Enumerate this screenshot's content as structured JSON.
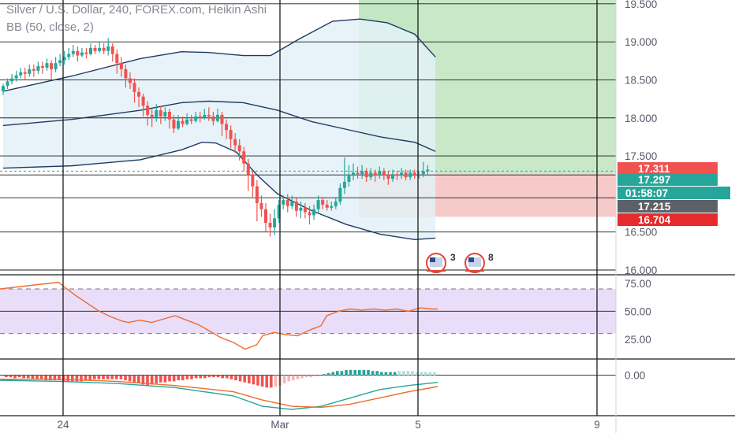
{
  "header": {
    "symbol_line": "Silver / U.S. Dollar, 240, FOREX.com, Heikin Ashi",
    "bb_line": "BB (50, close, 2)"
  },
  "colors": {
    "up": "#26a69a",
    "down": "#ef5350",
    "bb": "#1f3b63",
    "rsi": "#ef6c2c",
    "rsi_band": "#e9ddfa",
    "macd_line": "#26a69a",
    "signal_line": "#ef6c2c",
    "target_zone": "#c8e8c8",
    "stop_zone": "#f7caca"
  },
  "chart_data": [
    {
      "type": "candlestick",
      "title": "Silver / U.S. Dollar, 240, FOREX.com, Heikin Ashi",
      "y_ticks": [
        "19.500",
        "19.000",
        "18.500",
        "18.000",
        "17.500",
        "16.500",
        "16.000"
      ],
      "ylim": [
        16.0,
        19.55
      ],
      "x_ticks": [
        "24",
        "Mar",
        "5",
        "9"
      ],
      "price_tags": [
        {
          "value": "17.311",
          "color": "#ef5350"
        },
        {
          "value": "17.297",
          "color": "#26a69a"
        },
        {
          "value": "01:58:07",
          "color": "#26a69a"
        },
        {
          "value": "17.215",
          "color": "#5d6066"
        },
        {
          "value": "16.704",
          "color": "#e52b2b"
        }
      ],
      "position": {
        "entry": 17.26,
        "target": 19.55,
        "stop": 16.7
      },
      "bollinger": {
        "upper": [
          [
            0,
            18.35
          ],
          [
            20,
            18.55
          ],
          [
            40,
            18.78
          ],
          [
            52,
            18.87
          ],
          [
            60,
            18.86
          ],
          [
            70,
            18.82
          ],
          [
            78,
            18.82
          ],
          [
            86,
            19.03
          ],
          [
            96,
            19.27
          ],
          [
            104,
            19.3
          ],
          [
            112,
            19.25
          ],
          [
            120,
            19.1
          ],
          [
            126,
            18.8
          ]
        ],
        "middle": [
          [
            0,
            17.9
          ],
          [
            20,
            17.98
          ],
          [
            40,
            18.1
          ],
          [
            52,
            18.2
          ],
          [
            60,
            18.22
          ],
          [
            70,
            18.2
          ],
          [
            80,
            18.1
          ],
          [
            90,
            17.95
          ],
          [
            100,
            17.85
          ],
          [
            110,
            17.75
          ],
          [
            120,
            17.68
          ],
          [
            126,
            17.56
          ]
        ],
        "lower": [
          [
            0,
            17.34
          ],
          [
            20,
            17.37
          ],
          [
            40,
            17.45
          ],
          [
            52,
            17.58
          ],
          [
            58,
            17.68
          ],
          [
            62,
            17.67
          ],
          [
            68,
            17.55
          ],
          [
            74,
            17.25
          ],
          [
            80,
            17.0
          ],
          [
            90,
            16.78
          ],
          [
            100,
            16.6
          ],
          [
            110,
            16.47
          ],
          [
            120,
            16.4
          ],
          [
            126,
            16.42
          ]
        ]
      },
      "candles": [
        [
          18.35,
          18.42,
          18.3,
          18.45
        ],
        [
          18.42,
          18.48,
          18.38,
          18.52
        ],
        [
          18.48,
          18.52,
          18.44,
          18.58
        ],
        [
          18.52,
          18.56,
          18.48,
          18.62
        ],
        [
          18.56,
          18.6,
          18.52,
          18.66
        ],
        [
          18.6,
          18.58,
          18.5,
          18.66
        ],
        [
          18.58,
          18.64,
          18.54,
          18.7
        ],
        [
          18.64,
          18.62,
          18.54,
          18.7
        ],
        [
          18.62,
          18.68,
          18.58,
          18.74
        ],
        [
          18.68,
          18.66,
          18.58,
          18.74
        ],
        [
          18.66,
          18.72,
          18.62,
          18.78
        ],
        [
          18.72,
          18.64,
          18.5,
          18.76
        ],
        [
          18.64,
          18.72,
          18.6,
          18.8
        ],
        [
          18.72,
          18.76,
          18.68,
          18.84
        ],
        [
          18.76,
          18.8,
          18.7,
          18.88
        ],
        [
          18.8,
          18.84,
          18.76,
          18.92
        ],
        [
          18.84,
          18.88,
          18.8,
          18.96
        ],
        [
          18.88,
          18.82,
          18.74,
          18.94
        ],
        [
          18.82,
          18.86,
          18.8,
          18.92
        ],
        [
          18.86,
          18.84,
          18.78,
          18.92
        ],
        [
          18.84,
          18.92,
          18.82,
          18.98
        ],
        [
          18.92,
          18.88,
          18.84,
          18.96
        ],
        [
          18.88,
          18.92,
          18.86,
          19.0
        ],
        [
          18.92,
          18.88,
          18.84,
          18.98
        ],
        [
          18.88,
          18.94,
          18.82,
          19.05
        ],
        [
          18.94,
          18.84,
          18.74,
          18.98
        ],
        [
          18.84,
          18.72,
          18.58,
          18.9
        ],
        [
          18.72,
          18.64,
          18.54,
          18.8
        ],
        [
          18.64,
          18.52,
          18.4,
          18.7
        ],
        [
          18.52,
          18.46,
          18.38,
          18.6
        ],
        [
          18.46,
          18.34,
          18.2,
          18.52
        ],
        [
          18.34,
          18.28,
          18.14,
          18.4
        ],
        [
          18.28,
          18.16,
          18.02,
          18.32
        ],
        [
          18.16,
          18.04,
          17.9,
          18.22
        ],
        [
          18.04,
          18.0,
          17.88,
          18.12
        ],
        [
          18.0,
          18.1,
          17.95,
          18.18
        ],
        [
          18.1,
          18.02,
          17.92,
          18.16
        ],
        [
          18.02,
          18.08,
          17.96,
          18.14
        ],
        [
          18.08,
          17.98,
          17.86,
          18.12
        ],
        [
          17.98,
          17.86,
          17.8,
          18.04
        ],
        [
          17.86,
          17.96,
          17.84,
          18.04
        ],
        [
          17.96,
          17.92,
          17.88,
          18.02
        ],
        [
          17.92,
          17.98,
          17.9,
          18.06
        ],
        [
          17.98,
          17.96,
          17.92,
          18.04
        ],
        [
          17.96,
          18.02,
          17.94,
          18.08
        ],
        [
          18.02,
          18.0,
          17.94,
          18.08
        ],
        [
          18.0,
          18.04,
          17.98,
          18.12
        ],
        [
          18.04,
          18.02,
          17.96,
          18.14
        ],
        [
          18.02,
          17.96,
          17.9,
          18.08
        ],
        [
          17.96,
          18.04,
          17.94,
          18.12
        ],
        [
          18.04,
          17.92,
          17.76,
          18.08
        ],
        [
          17.92,
          17.84,
          17.72,
          17.98
        ],
        [
          17.84,
          17.72,
          17.6,
          17.9
        ],
        [
          17.72,
          17.64,
          17.54,
          17.8
        ],
        [
          17.64,
          17.56,
          17.44,
          17.72
        ],
        [
          17.56,
          17.4,
          17.3,
          17.62
        ],
        [
          17.4,
          17.24,
          17.04,
          17.46
        ],
        [
          17.24,
          17.1,
          16.96,
          17.3
        ],
        [
          17.1,
          16.88,
          16.64,
          17.18
        ],
        [
          16.88,
          16.8,
          16.7,
          16.98
        ],
        [
          16.8,
          16.62,
          16.5,
          16.88
        ],
        [
          16.62,
          16.56,
          16.44,
          16.74
        ],
        [
          16.56,
          16.68,
          16.46,
          16.8
        ],
        [
          16.68,
          16.86,
          16.62,
          16.92
        ],
        [
          16.86,
          16.92,
          16.8,
          16.98
        ],
        [
          16.92,
          16.84,
          16.76,
          17.0
        ],
        [
          16.84,
          16.9,
          16.8,
          16.98
        ],
        [
          16.9,
          16.78,
          16.7,
          16.96
        ],
        [
          16.78,
          16.82,
          16.68,
          16.9
        ],
        [
          16.82,
          16.76,
          16.68,
          16.88
        ],
        [
          16.76,
          16.72,
          16.6,
          16.84
        ],
        [
          16.72,
          16.8,
          16.66,
          16.86
        ],
        [
          16.8,
          16.92,
          16.76,
          16.98
        ],
        [
          16.92,
          16.86,
          16.8,
          16.96
        ],
        [
          16.86,
          16.82,
          16.78,
          16.92
        ],
        [
          16.82,
          16.84,
          16.78,
          16.9
        ],
        [
          16.84,
          16.9,
          16.8,
          16.96
        ],
        [
          16.9,
          17.08,
          16.86,
          17.14
        ],
        [
          17.08,
          17.16,
          17.0,
          17.48
        ],
        [
          17.16,
          17.24,
          17.1,
          17.38
        ],
        [
          17.24,
          17.28,
          17.18,
          17.4
        ],
        [
          17.28,
          17.26,
          17.2,
          17.36
        ],
        [
          17.26,
          17.3,
          17.2,
          17.38
        ],
        [
          17.3,
          17.22,
          17.16,
          17.34
        ],
        [
          17.22,
          17.28,
          17.18,
          17.34
        ],
        [
          17.28,
          17.24,
          17.16,
          17.32
        ],
        [
          17.24,
          17.3,
          17.2,
          17.36
        ],
        [
          17.3,
          17.24,
          17.18,
          17.34
        ],
        [
          17.24,
          17.2,
          17.12,
          17.3
        ],
        [
          17.2,
          17.26,
          17.16,
          17.32
        ],
        [
          17.26,
          17.24,
          17.18,
          17.3
        ],
        [
          17.24,
          17.28,
          17.2,
          17.34
        ],
        [
          17.28,
          17.22,
          17.18,
          17.32
        ],
        [
          17.22,
          17.28,
          17.18,
          17.32
        ],
        [
          17.28,
          17.24,
          17.2,
          17.32
        ],
        [
          17.24,
          17.26,
          17.2,
          17.3
        ],
        [
          17.26,
          17.3,
          17.22,
          17.42
        ],
        [
          17.3,
          17.32,
          17.26,
          17.38
        ]
      ]
    },
    {
      "type": "line",
      "title": "",
      "y_ticks": [
        "75.00",
        "50.00",
        "25.00"
      ],
      "ylim": [
        10,
        82
      ],
      "band": [
        30,
        70
      ],
      "series": [
        {
          "values": [
            [
              0,
              70
            ],
            [
              10,
              73
            ],
            [
              20,
              76
            ],
            [
              22,
              72
            ],
            [
              26,
              64
            ],
            [
              30,
              57
            ],
            [
              34,
              50
            ],
            [
              38,
              45
            ],
            [
              42,
              41
            ],
            [
              44,
              40
            ],
            [
              48,
              42
            ],
            [
              52,
              40
            ],
            [
              56,
              43
            ],
            [
              60,
              46
            ],
            [
              62,
              44
            ],
            [
              64,
              42
            ],
            [
              68,
              38
            ],
            [
              72,
              32
            ],
            [
              76,
              26
            ],
            [
              80,
              22
            ],
            [
              84,
              16
            ],
            [
              88,
              20
            ],
            [
              90,
              28
            ],
            [
              94,
              31
            ],
            [
              98,
              29
            ],
            [
              102,
              28
            ],
            [
              106,
              33
            ],
            [
              110,
              37
            ],
            [
              112,
              46
            ],
            [
              116,
              50
            ],
            [
              120,
              52
            ],
            [
              124,
              51
            ],
            [
              128,
              52
            ],
            [
              132,
              51
            ],
            [
              136,
              52
            ],
            [
              140,
              50
            ],
            [
              144,
              53
            ],
            [
              148,
              52
            ],
            [
              150,
              52
            ]
          ]
        }
      ]
    },
    {
      "type": "bar",
      "title": "",
      "y_ticks": [
        "0.00"
      ],
      "ylim": [
        -0.36,
        0.14
      ],
      "series": [
        {
          "values": [
            [
              0,
              -0.05
            ],
            [
              20,
              -0.06
            ],
            [
              40,
              -0.08
            ],
            [
              60,
              -0.12
            ],
            [
              80,
              -0.2
            ],
            [
              90,
              -0.3
            ],
            [
              100,
              -0.33
            ],
            [
              110,
              -0.3
            ],
            [
              120,
              -0.22
            ],
            [
              130,
              -0.14
            ],
            [
              140,
              -0.1
            ],
            [
              150,
              -0.07
            ]
          ]
        },
        {
          "values": [
            [
              0,
              -0.04
            ],
            [
              20,
              -0.04
            ],
            [
              40,
              -0.06
            ],
            [
              60,
              -0.1
            ],
            [
              80,
              -0.16
            ],
            [
              90,
              -0.24
            ],
            [
              100,
              -0.3
            ],
            [
              110,
              -0.31
            ],
            [
              120,
              -0.28
            ],
            [
              130,
              -0.22
            ],
            [
              140,
              -0.16
            ],
            [
              150,
              -0.11
            ]
          ]
        }
      ],
      "histogram": [
        -0.02,
        -0.02,
        -0.03,
        -0.02,
        -0.03,
        -0.03,
        -0.04,
        -0.04,
        -0.04,
        -0.05,
        -0.05,
        -0.05,
        -0.05,
        -0.06,
        -0.06,
        -0.06,
        -0.06,
        -0.06,
        -0.05,
        -0.05,
        -0.04,
        -0.04,
        -0.04,
        -0.04,
        -0.04,
        -0.04,
        -0.04,
        -0.05,
        -0.06,
        -0.07,
        -0.08,
        -0.09,
        -0.1,
        -0.09,
        -0.08,
        -0.07,
        -0.07,
        -0.06,
        -0.06,
        -0.05,
        -0.05,
        -0.04,
        -0.04,
        -0.03,
        -0.03,
        -0.03,
        -0.02,
        -0.02,
        -0.02,
        -0.03,
        -0.03,
        -0.04,
        -0.05,
        -0.06,
        -0.07,
        -0.08,
        -0.09,
        -0.1,
        -0.11,
        -0.12,
        -0.12,
        -0.11,
        -0.1,
        -0.08,
        -0.06,
        -0.05,
        -0.04,
        -0.03,
        -0.02,
        -0.02,
        -0.01,
        -0.01,
        0.01,
        0.02,
        0.03,
        0.04,
        0.04,
        0.05,
        0.05,
        0.05,
        0.05,
        0.05,
        0.05,
        0.04,
        0.04,
        0.03,
        0.03,
        0.03,
        0.03,
        0.04,
        0.04,
        0.04,
        0.04,
        0.03,
        0.03,
        0.03,
        0.03,
        0.03
      ]
    }
  ]
}
